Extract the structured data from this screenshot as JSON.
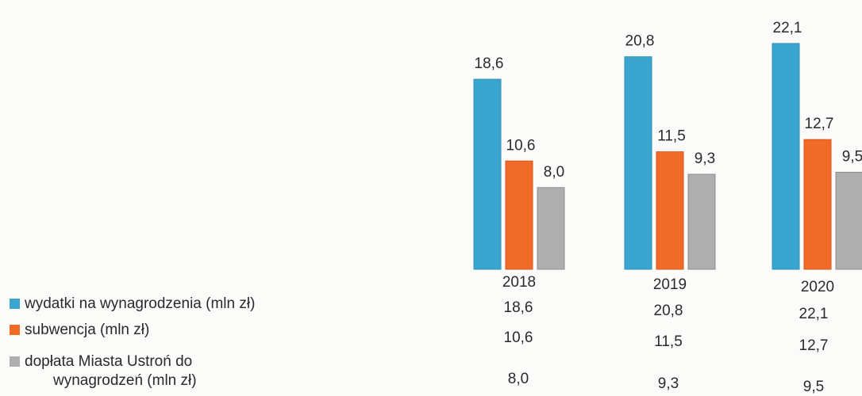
{
  "chart_data": {
    "type": "bar",
    "categories": [
      "2018",
      "2019",
      "2020"
    ],
    "series": [
      {
        "name": "wydatki na wynagrodzenia (mln zł)",
        "values": [
          18.6,
          20.8,
          22.1
        ],
        "labels": [
          "18,6",
          "20,8",
          "22,1"
        ],
        "color": "#3aa6cf"
      },
      {
        "name": "subwencja (mln zł)",
        "values": [
          10.6,
          11.5,
          12.7
        ],
        "labels": [
          "10,6",
          "11,5",
          "12,7"
        ],
        "color": "#f06b28"
      },
      {
        "name": "dopłata Miasta Ustroń do wynagrodzeń (mln zł)",
        "values": [
          8.0,
          9.3,
          9.5
        ],
        "labels": [
          "8,0",
          "9,3",
          "9,5"
        ],
        "color": "#aeaeae"
      }
    ],
    "legend_lines": [
      [
        "wydatki na wynagrodzenia (mln zł)"
      ],
      [
        "subwencja (mln zł)"
      ],
      [
        "dopłata Miasta Ustroń do",
        "wynagrodzeń (mln zł)"
      ]
    ],
    "ylim": [
      0,
      23
    ],
    "grid": false,
    "legend": "bottom-left data table"
  }
}
